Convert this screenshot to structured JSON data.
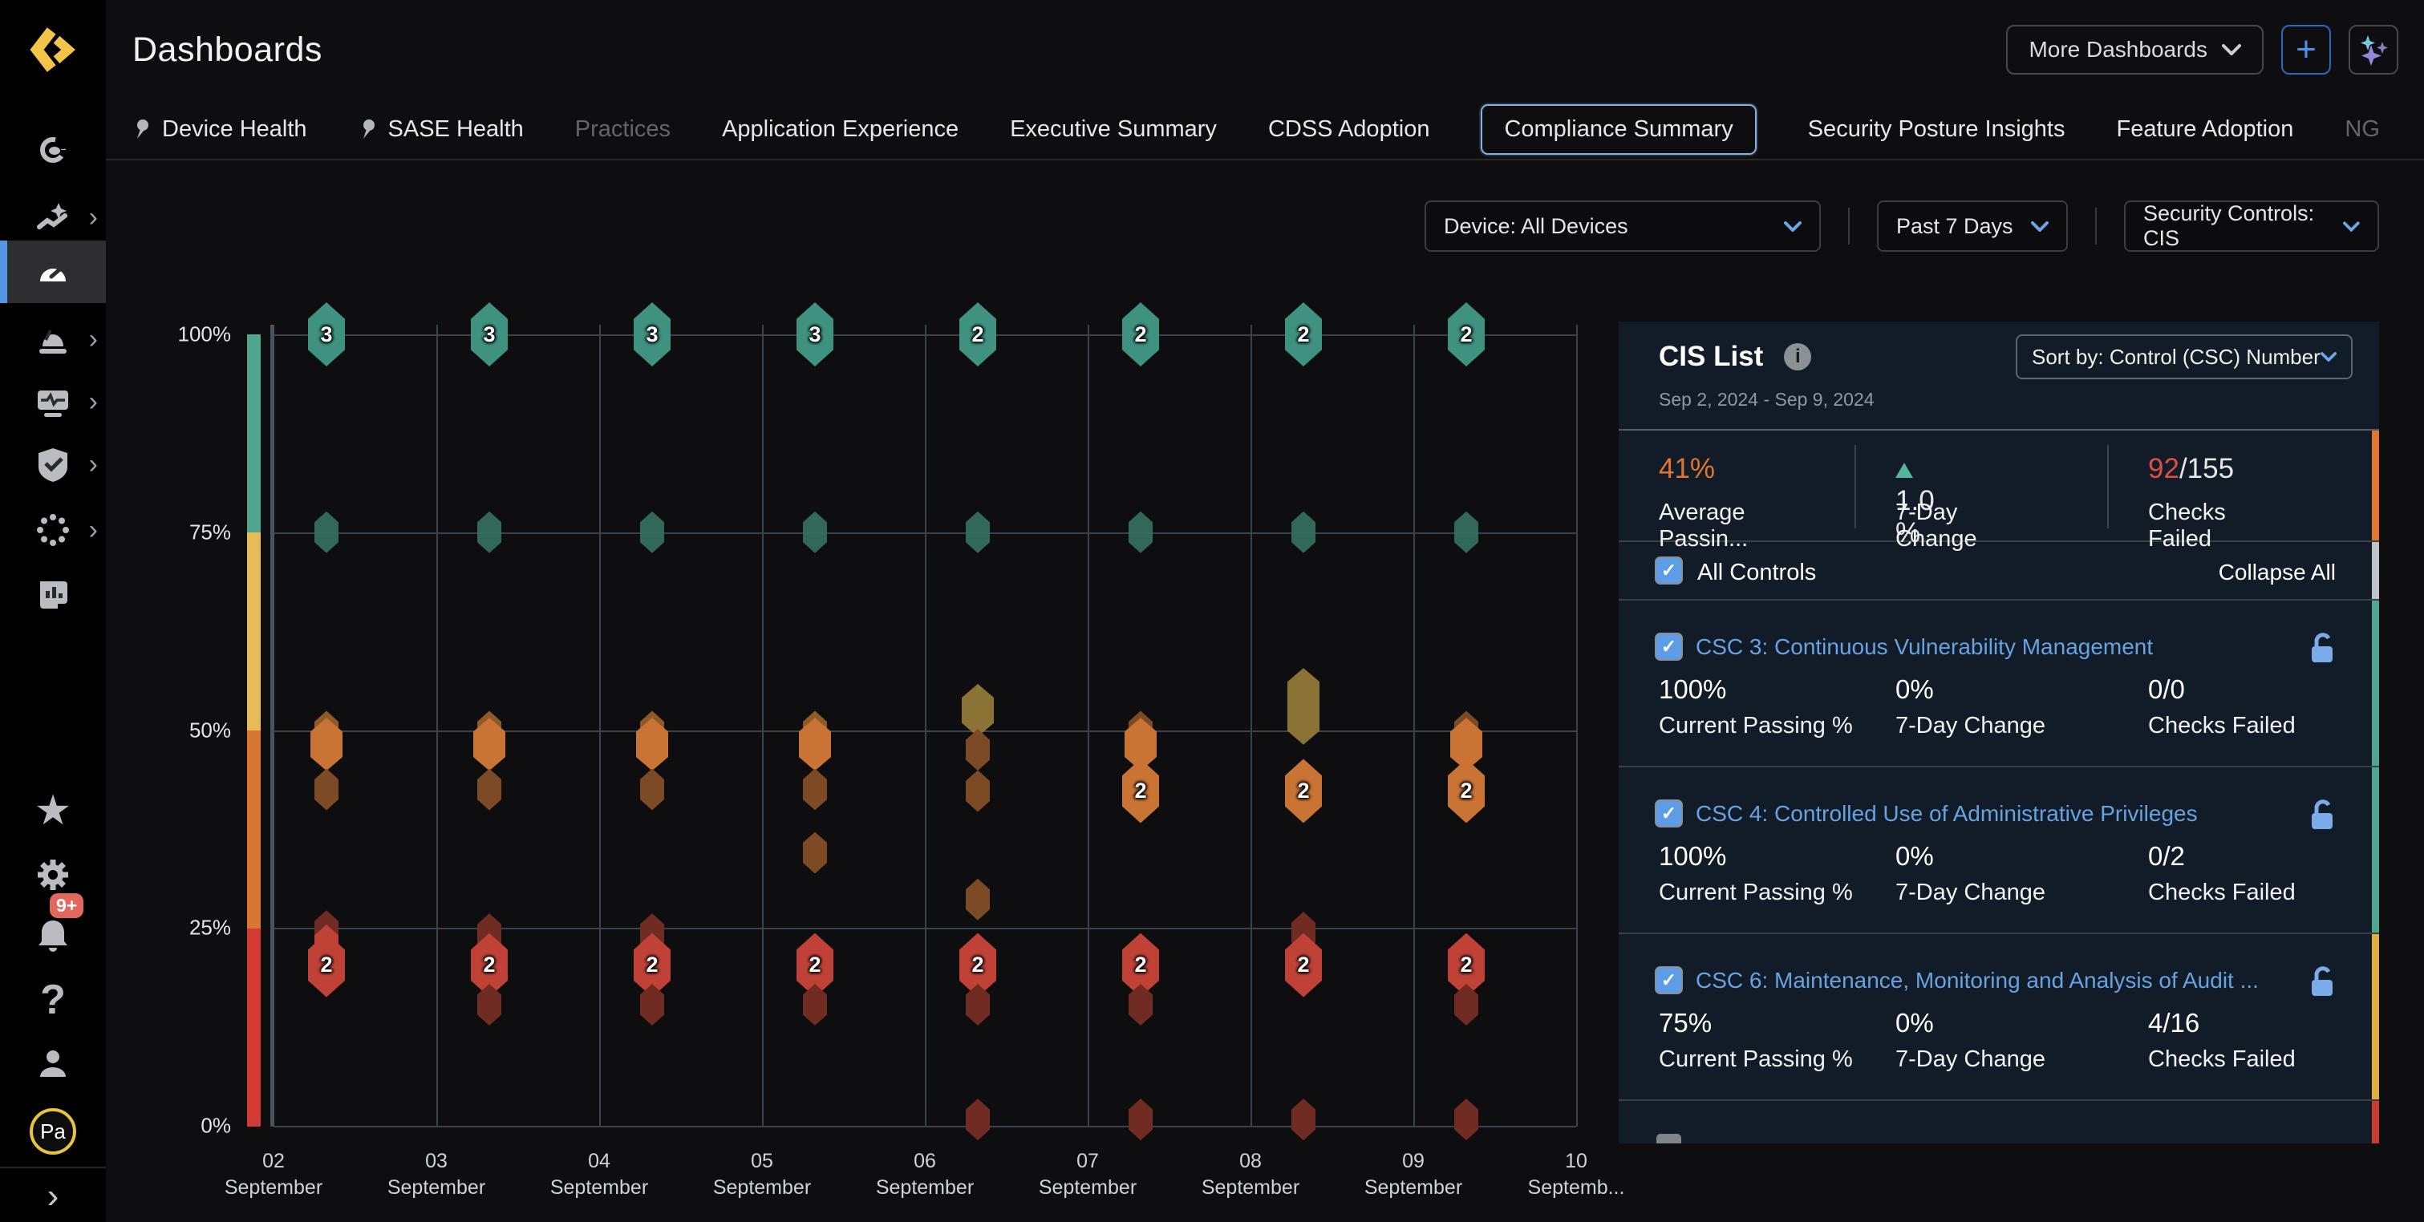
{
  "app": {
    "title": "Dashboards"
  },
  "header": {
    "more_dashboards_label": "More Dashboards",
    "add_label": "+",
    "ai_button": "sparkles"
  },
  "tabs": {
    "items": [
      {
        "label": "Device Health",
        "pinned": true
      },
      {
        "label": "SASE Health",
        "pinned": true
      },
      {
        "label": "Practices",
        "dimmed": true
      },
      {
        "label": "Application Experience"
      },
      {
        "label": "Executive Summary"
      },
      {
        "label": "CDSS Adoption"
      },
      {
        "label": "Compliance Summary",
        "selected": true
      },
      {
        "label": "Security Posture Insights"
      },
      {
        "label": "Feature Adoption"
      },
      {
        "label": "NG",
        "dimmed": true
      }
    ]
  },
  "filters": {
    "device": "Device: All Devices",
    "time_range": "Past 7 Days",
    "controls": "Security Controls: CIS"
  },
  "sidebar": {
    "icons": [
      "observability-icon",
      "insights-icon",
      "dashboards-icon",
      "alerts-icon",
      "monitor-health-icon",
      "compliance-shield-icon",
      "services-icon",
      "reports-icon",
      "favorites-star-icon",
      "settings-gear-icon",
      "notifications-bell-icon",
      "help-icon",
      "account-person-icon"
    ],
    "active_item": "dashboards-icon",
    "notification_badge": "9+",
    "avatar_initials": "Pa"
  },
  "chart_data": {
    "type": "scatter",
    "title": "",
    "ylim": [
      0,
      100
    ],
    "y_ticks": [
      "100%",
      "75%",
      "50%",
      "25%",
      "0%"
    ],
    "grid": true,
    "risk_scale_colors": [
      "#4fa58d",
      "#e7bb55",
      "#d8772f",
      "#d23b31"
    ],
    "x_labels": [
      {
        "day": "02",
        "month": "September"
      },
      {
        "day": "03",
        "month": "September"
      },
      {
        "day": "04",
        "month": "September"
      },
      {
        "day": "05",
        "month": "September"
      },
      {
        "day": "06",
        "month": "September"
      },
      {
        "day": "07",
        "month": "September"
      },
      {
        "day": "08",
        "month": "September"
      },
      {
        "day": "09",
        "month": "September"
      },
      {
        "day": "10",
        "month": "Septemb..."
      }
    ],
    "points": [
      {
        "col": 0,
        "value": 100,
        "color": "teal",
        "size": "lg",
        "label": "3"
      },
      {
        "col": 0,
        "value": 75,
        "color": "tealdim",
        "size": "sm"
      },
      {
        "col": 0,
        "value": 49.8,
        "color": "orangeback",
        "size": "sm"
      },
      {
        "col": 0,
        "value": 48.2,
        "color": "orange",
        "size": "md"
      },
      {
        "col": 0,
        "value": 42.5,
        "color": "brown",
        "size": "sm"
      },
      {
        "col": 0,
        "value": 24.6,
        "color": "darkred",
        "size": "sm"
      },
      {
        "col": 0,
        "value": 22.8,
        "color": "red",
        "size": "sm"
      },
      {
        "col": 0,
        "value": 20.3,
        "color": "red",
        "size": "lg",
        "label": "2"
      },
      {
        "col": 1,
        "value": 100,
        "color": "teal",
        "size": "lg",
        "label": "3"
      },
      {
        "col": 1,
        "value": 75,
        "color": "tealdim",
        "size": "sm"
      },
      {
        "col": 1,
        "value": 49.8,
        "color": "orangeback",
        "size": "sm"
      },
      {
        "col": 1,
        "value": 48.2,
        "color": "orange",
        "size": "md"
      },
      {
        "col": 1,
        "value": 42.5,
        "color": "brown",
        "size": "sm"
      },
      {
        "col": 1,
        "value": 24.2,
        "color": "darkred",
        "size": "sm"
      },
      {
        "col": 1,
        "value": 20.3,
        "color": "red",
        "size": "lg",
        "label": "2"
      },
      {
        "col": 1,
        "value": 15.3,
        "color": "darkred",
        "size": "sm"
      },
      {
        "col": 2,
        "value": 100,
        "color": "teal",
        "size": "lg",
        "label": "3"
      },
      {
        "col": 2,
        "value": 75,
        "color": "tealdim",
        "size": "sm"
      },
      {
        "col": 2,
        "value": 49.8,
        "color": "orangeback",
        "size": "sm"
      },
      {
        "col": 2,
        "value": 48.2,
        "color": "orange",
        "size": "md"
      },
      {
        "col": 2,
        "value": 42.5,
        "color": "brown",
        "size": "sm"
      },
      {
        "col": 2,
        "value": 24.2,
        "color": "darkred",
        "size": "sm"
      },
      {
        "col": 2,
        "value": 20.3,
        "color": "red",
        "size": "lg",
        "label": "2"
      },
      {
        "col": 2,
        "value": 15.3,
        "color": "darkred",
        "size": "sm"
      },
      {
        "col": 3,
        "value": 100,
        "color": "teal",
        "size": "lg",
        "label": "3"
      },
      {
        "col": 3,
        "value": 75,
        "color": "tealdim",
        "size": "sm"
      },
      {
        "col": 3,
        "value": 49.8,
        "color": "orangeback",
        "size": "sm"
      },
      {
        "col": 3,
        "value": 48.2,
        "color": "orange",
        "size": "md"
      },
      {
        "col": 3,
        "value": 42.5,
        "color": "brown",
        "size": "sm"
      },
      {
        "col": 3,
        "value": 34.5,
        "color": "brown",
        "size": "sm"
      },
      {
        "col": 3,
        "value": 20.3,
        "color": "red",
        "size": "lg",
        "label": "2"
      },
      {
        "col": 3,
        "value": 15.3,
        "color": "darkred",
        "size": "sm"
      },
      {
        "col": 4,
        "value": 100,
        "color": "teal",
        "size": "lg",
        "label": "2"
      },
      {
        "col": 4,
        "value": 75,
        "color": "tealdim",
        "size": "sm"
      },
      {
        "col": 4,
        "value": 52.5,
        "color": "olive",
        "size": "md"
      },
      {
        "col": 4,
        "value": 47.5,
        "color": "brown",
        "size": "sm"
      },
      {
        "col": 4,
        "value": 42.3,
        "color": "brown",
        "size": "sm"
      },
      {
        "col": 4,
        "value": 28.6,
        "color": "brown",
        "size": "sm"
      },
      {
        "col": 4,
        "value": 20.3,
        "color": "red",
        "size": "lg",
        "label": "2"
      },
      {
        "col": 4,
        "value": 15.3,
        "color": "darkred",
        "size": "sm"
      },
      {
        "col": 4,
        "value": 0.8,
        "color": "darkred",
        "size": "sm"
      },
      {
        "col": 5,
        "value": 100,
        "color": "teal",
        "size": "lg",
        "label": "2"
      },
      {
        "col": 5,
        "value": 75,
        "color": "tealdim",
        "size": "sm"
      },
      {
        "col": 5,
        "value": 49.8,
        "color": "brown",
        "size": "sm"
      },
      {
        "col": 5,
        "value": 48.2,
        "color": "orange",
        "size": "md"
      },
      {
        "col": 5,
        "value": 42.3,
        "color": "orange",
        "size": "lg",
        "label": "2"
      },
      {
        "col": 5,
        "value": 20.3,
        "color": "red",
        "size": "lg",
        "label": "2"
      },
      {
        "col": 5,
        "value": 15.3,
        "color": "darkred",
        "size": "sm"
      },
      {
        "col": 5,
        "value": 0.8,
        "color": "darkred",
        "size": "sm"
      },
      {
        "col": 6,
        "value": 100,
        "color": "teal",
        "size": "lg",
        "label": "2"
      },
      {
        "col": 6,
        "value": 75,
        "color": "tealdim",
        "size": "sm"
      },
      {
        "col": 6,
        "value": 54.5,
        "color": "olive",
        "size": "md"
      },
      {
        "col": 6,
        "value": 51.5,
        "color": "olive",
        "size": "md"
      },
      {
        "col": 6,
        "value": 42.3,
        "color": "orange",
        "size": "lg",
        "label": "2"
      },
      {
        "col": 6,
        "value": 24.4,
        "color": "darkred",
        "size": "sm"
      },
      {
        "col": 6,
        "value": 20.3,
        "color": "red",
        "size": "lg",
        "label": "2"
      },
      {
        "col": 6,
        "value": 0.8,
        "color": "darkred",
        "size": "sm"
      },
      {
        "col": 7,
        "value": 100,
        "color": "teal",
        "size": "lg",
        "label": "2"
      },
      {
        "col": 7,
        "value": 75,
        "color": "tealdim",
        "size": "sm"
      },
      {
        "col": 7,
        "value": 49.8,
        "color": "brown",
        "size": "sm"
      },
      {
        "col": 7,
        "value": 48.2,
        "color": "orange",
        "size": "md"
      },
      {
        "col": 7,
        "value": 42.3,
        "color": "orange",
        "size": "lg",
        "label": "2"
      },
      {
        "col": 7,
        "value": 20.3,
        "color": "red",
        "size": "lg",
        "label": "2"
      },
      {
        "col": 7,
        "value": 15.3,
        "color": "darkred",
        "size": "sm"
      },
      {
        "col": 7,
        "value": 0.8,
        "color": "darkred",
        "size": "sm"
      }
    ]
  },
  "panel": {
    "title": "CIS List",
    "date_range": "Sep 2, 2024 - Sep 9, 2024",
    "sort_label": "Sort by: Control (CSC) Number",
    "summary": {
      "passing_value": "41%",
      "passing_label": "Average Passin...",
      "change_value": "1.0 %",
      "change_label": "7-Day Change",
      "failed_value": "92",
      "failed_total": "/155",
      "failed_label": "Checks Failed"
    },
    "all_controls_label": "All Controls",
    "collapse_all_label": "Collapse All",
    "row_labels": {
      "passing": "Current Passing %",
      "change": "7-Day Change",
      "failed": "Checks Failed"
    },
    "rows": [
      {
        "title": "CSC 3: Continuous Vulnerability Management",
        "passing": "100%",
        "passing_class": "green-t",
        "change": "0%",
        "failed": "0/0",
        "strip": "#4da88f"
      },
      {
        "title": "CSC 4: Controlled Use of Administrative Privileges",
        "passing": "100%",
        "passing_class": "green-t",
        "change": "0%",
        "failed": "0/2",
        "strip": "#4da88f"
      },
      {
        "title": "CSC 6: Maintenance, Monitoring and Analysis of Audit ...",
        "passing": "75%",
        "passing_class": "amber-t",
        "change": "0%",
        "failed": "4/16",
        "strip": "#dfaf3f"
      }
    ],
    "summary_strip": "#e0762f",
    "all_controls_strip": "#c0c3c8",
    "partial_row_strip": "#cc3b33"
  }
}
